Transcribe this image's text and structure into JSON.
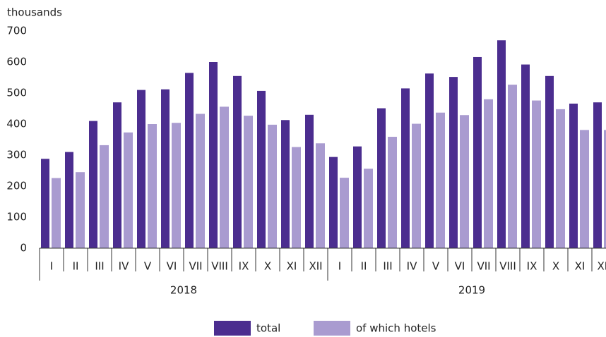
{
  "chart_data": {
    "type": "bar",
    "y_label": "thousands",
    "categories": [
      "I",
      "II",
      "III",
      "IV",
      "V",
      "VI",
      "VII",
      "VIII",
      "IX",
      "X",
      "XI",
      "XII",
      "I",
      "II",
      "III",
      "IV",
      "V",
      "VI",
      "VII",
      "VIII",
      "IX",
      "X",
      "XI",
      "XII"
    ],
    "years": [
      "2018",
      "2019"
    ],
    "series": [
      {
        "name": "total",
        "color": "#4b2d8f",
        "values": [
          288,
          310,
          410,
          470,
          510,
          512,
          565,
          600,
          555,
          507,
          413,
          430,
          294,
          328,
          451,
          515,
          563,
          552,
          616,
          670,
          592,
          555,
          466,
          470
        ]
      },
      {
        "name": "of which hotels",
        "color": "#a99bd0",
        "values": [
          226,
          245,
          332,
          373,
          400,
          404,
          433,
          456,
          427,
          398,
          326,
          338,
          227,
          256,
          359,
          401,
          437,
          429,
          480,
          527,
          476,
          448,
          381,
          381
        ]
      }
    ],
    "ylim": [
      0,
      700
    ],
    "yticks": [
      0,
      100,
      200,
      300,
      400,
      500,
      600,
      700
    ],
    "grid": false
  }
}
